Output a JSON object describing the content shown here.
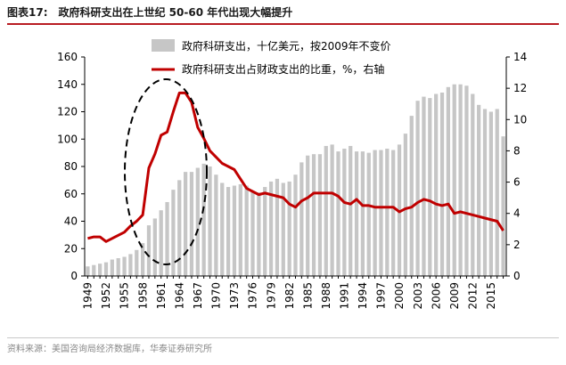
{
  "figure": {
    "label": "图表17:",
    "title": "政府科研支出在上世纪 50-60 年代出现大幅提升",
    "source": "资料来源：美国咨询局经济数据库，华泰证券研究所"
  },
  "colors": {
    "bar": "#c6c6c6",
    "line": "#c00000",
    "accent": "#b81c22",
    "ellipse": "#000000"
  },
  "chart_data": {
    "type": "bar+line",
    "x": [
      1949,
      1950,
      1951,
      1952,
      1953,
      1954,
      1955,
      1956,
      1957,
      1958,
      1959,
      1960,
      1961,
      1962,
      1963,
      1964,
      1965,
      1966,
      1967,
      1968,
      1969,
      1970,
      1971,
      1972,
      1973,
      1974,
      1975,
      1976,
      1977,
      1978,
      1979,
      1980,
      1981,
      1982,
      1983,
      1984,
      1985,
      1986,
      1987,
      1988,
      1989,
      1990,
      1991,
      1992,
      1993,
      1994,
      1995,
      1996,
      1997,
      1998,
      1999,
      2000,
      2001,
      2002,
      2003,
      2004,
      2005,
      2006,
      2007,
      2008,
      2009,
      2010,
      2011,
      2012,
      2013,
      2014,
      2015,
      2016,
      2017
    ],
    "x_tick_labels": [
      "1949",
      "1952",
      "1955",
      "1958",
      "1961",
      "1964",
      "1967",
      "1970",
      "1973",
      "1976",
      "1979",
      "1982",
      "1985",
      "1988",
      "1991",
      "1994",
      "1997",
      "2000",
      "2003",
      "2006",
      "2009",
      "2012",
      "2015"
    ],
    "series": [
      {
        "name": "政府科研支出，十亿美元，按2009年不变价",
        "type": "bar",
        "axis": "left",
        "values": [
          7,
          8,
          9,
          10,
          12,
          13,
          14,
          16,
          19,
          24,
          37,
          42,
          48,
          54,
          63,
          70,
          76,
          76,
          79,
          82,
          80,
          74,
          68,
          65,
          66,
          67,
          66,
          62,
          61,
          65,
          69,
          71,
          68,
          69,
          74,
          83,
          88,
          89,
          89,
          95,
          96,
          91,
          93,
          95,
          91,
          91,
          90,
          92,
          92,
          93,
          92,
          96,
          104,
          117,
          128,
          131,
          130,
          133,
          134,
          138,
          140,
          140,
          139,
          133,
          125,
          122,
          120,
          122,
          102
        ]
      },
      {
        "name": "政府科研支出占财政支出的比重，%，右轴",
        "type": "line",
        "axis": "right",
        "values": [
          2.4,
          2.5,
          2.5,
          2.2,
          2.4,
          2.6,
          2.8,
          3.2,
          3.5,
          3.9,
          6.9,
          7.8,
          9.0,
          9.2,
          10.5,
          11.7,
          11.7,
          11.1,
          9.5,
          8.8,
          8.0,
          7.6,
          7.2,
          7.0,
          6.8,
          6.2,
          5.6,
          5.4,
          5.2,
          5.3,
          5.2,
          5.1,
          5.0,
          4.6,
          4.4,
          4.8,
          5.0,
          5.3,
          5.3,
          5.3,
          5.3,
          5.1,
          4.7,
          4.6,
          4.9,
          4.5,
          4.5,
          4.4,
          4.4,
          4.4,
          4.4,
          4.1,
          4.3,
          4.4,
          4.7,
          4.9,
          4.8,
          4.6,
          4.5,
          4.6,
          4.0,
          4.1,
          4.0,
          3.9,
          3.8,
          3.7,
          3.6,
          3.5,
          2.9
        ]
      }
    ],
    "y_left": {
      "min": 0,
      "max": 160,
      "ticks": [
        0,
        20,
        40,
        60,
        80,
        100,
        120,
        140,
        160
      ]
    },
    "y_right": {
      "min": 0,
      "max": 14,
      "ticks": [
        0,
        2,
        4,
        6,
        8,
        10,
        12,
        14
      ]
    },
    "legend_position": "top-center",
    "grid": false
  }
}
